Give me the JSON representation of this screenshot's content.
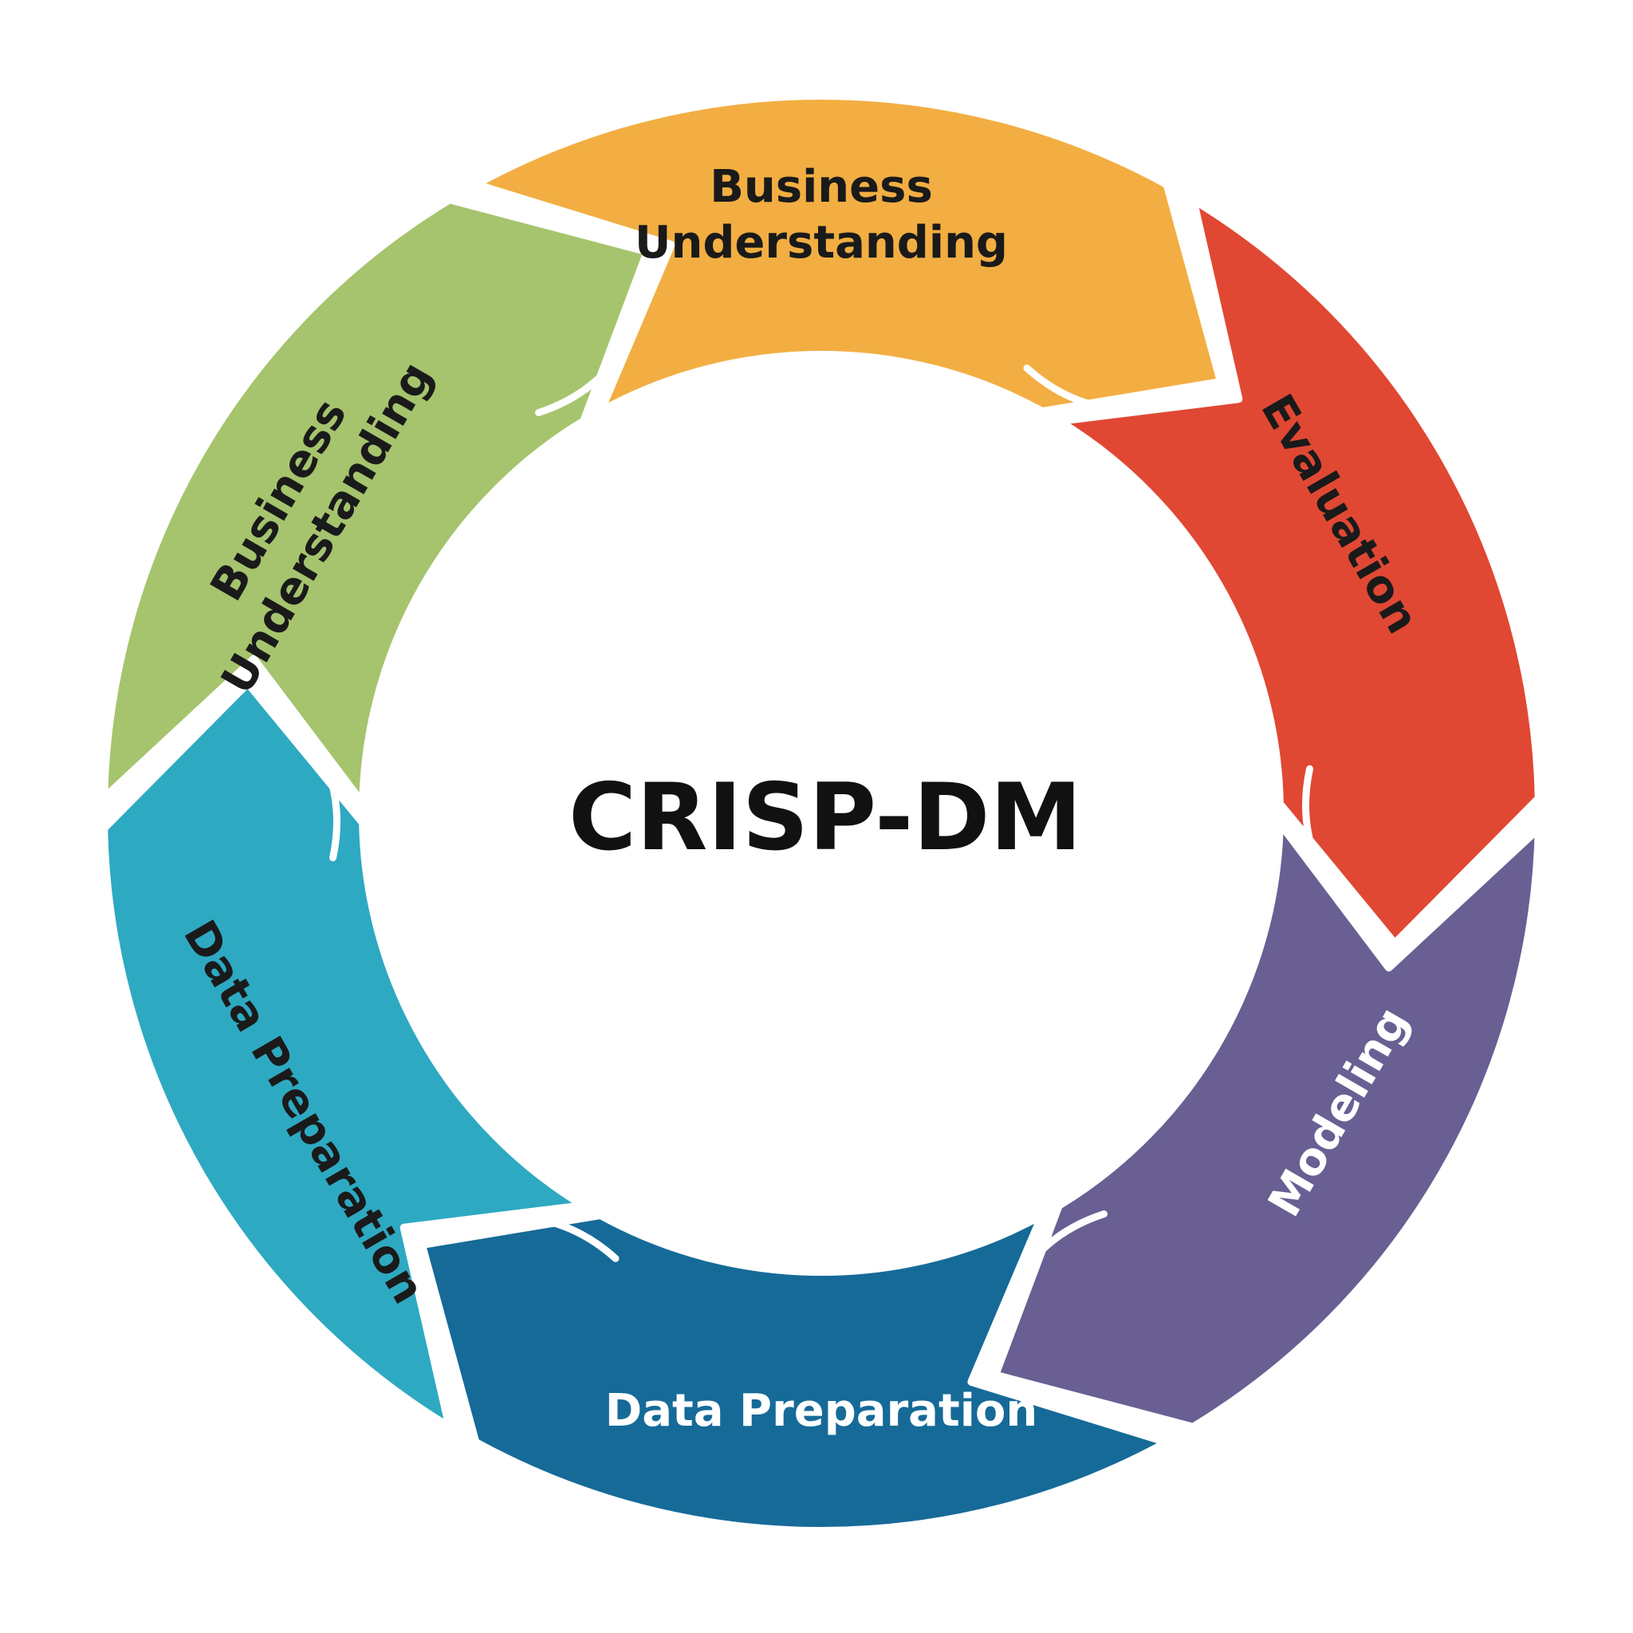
{
  "diagram": {
    "center_title": "CRISP-DM",
    "background_color": "#ffffff",
    "connector_color": "#ffffff",
    "phases": [
      {
        "name": "Business\nUnderstanding",
        "color": "#f2ae42",
        "text_color": "#1a1a1a"
      },
      {
        "name": "Evaluation",
        "color": "#e04833",
        "text_color": "#1a1a1a"
      },
      {
        "name": "Modeling",
        "color": "#695f93",
        "text_color": "#ffffff"
      },
      {
        "name": "Data Preparation",
        "color": "#166a98",
        "text_color": "#ffffff"
      },
      {
        "name": "Data Preparation",
        "color": "#2ea9c2",
        "text_color": "#1a1a1a"
      },
      {
        "name": "Business\nUnderstanding",
        "color": "#a5c46d",
        "text_color": "#1a1a1a"
      }
    ]
  }
}
